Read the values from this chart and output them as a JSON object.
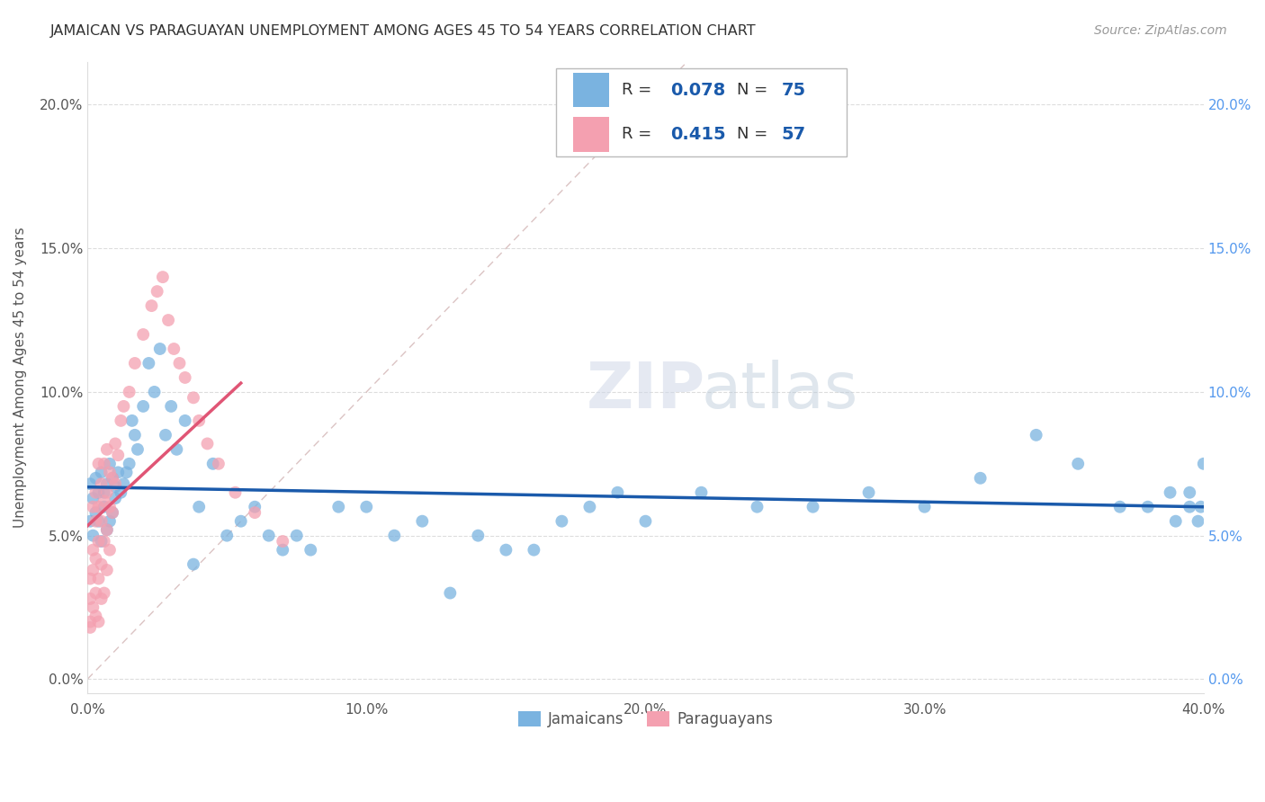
{
  "title": "JAMAICAN VS PARAGUAYAN UNEMPLOYMENT AMONG AGES 45 TO 54 YEARS CORRELATION CHART",
  "source": "Source: ZipAtlas.com",
  "ylabel": "Unemployment Among Ages 45 to 54 years",
  "xlabel_ticks": [
    "0.0%",
    "10.0%",
    "20.0%",
    "30.0%",
    "40.0%"
  ],
  "ylabel_ticks_left": [
    "0.0%",
    "5.0%",
    "10.0%",
    "15.0%",
    "20.0%"
  ],
  "ylabel_ticks_right": [
    "0.0%",
    "5.0%",
    "10.0%",
    "15.0%",
    "20.0%"
  ],
  "xlim": [
    0.0,
    0.4
  ],
  "ylim": [
    -0.005,
    0.215
  ],
  "background_color": "#ffffff",
  "grid_color": "#dddddd",
  "title_color": "#333333",
  "source_color": "#999999",
  "jamaican_color": "#7ab3e0",
  "paraguayan_color": "#f4a0b0",
  "jamaican_line_color": "#1a5aab",
  "paraguayan_line_color": "#e05575",
  "diagonal_line_color": "#f4a0b0",
  "jamaican_R": 0.078,
  "jamaican_N": 75,
  "paraguayan_R": 0.415,
  "paraguayan_N": 57,
  "jamaican_x": [
    0.001,
    0.001,
    0.002,
    0.002,
    0.003,
    0.003,
    0.004,
    0.004,
    0.005,
    0.005,
    0.006,
    0.006,
    0.007,
    0.007,
    0.008,
    0.008,
    0.009,
    0.009,
    0.01,
    0.01,
    0.011,
    0.012,
    0.013,
    0.014,
    0.015,
    0.016,
    0.017,
    0.018,
    0.02,
    0.022,
    0.024,
    0.026,
    0.028,
    0.03,
    0.032,
    0.035,
    0.038,
    0.04,
    0.045,
    0.05,
    0.055,
    0.06,
    0.065,
    0.07,
    0.075,
    0.08,
    0.09,
    0.1,
    0.11,
    0.12,
    0.13,
    0.14,
    0.15,
    0.16,
    0.17,
    0.18,
    0.19,
    0.2,
    0.22,
    0.24,
    0.26,
    0.28,
    0.3,
    0.32,
    0.34,
    0.355,
    0.37,
    0.38,
    0.39,
    0.395,
    0.398,
    0.399,
    0.4,
    0.395,
    0.388
  ],
  "jamaican_y": [
    0.068,
    0.055,
    0.063,
    0.05,
    0.058,
    0.07,
    0.055,
    0.065,
    0.048,
    0.072,
    0.06,
    0.065,
    0.052,
    0.068,
    0.055,
    0.075,
    0.058,
    0.07,
    0.063,
    0.067,
    0.072,
    0.065,
    0.068,
    0.072,
    0.075,
    0.09,
    0.085,
    0.08,
    0.095,
    0.11,
    0.1,
    0.115,
    0.085,
    0.095,
    0.08,
    0.09,
    0.04,
    0.06,
    0.075,
    0.05,
    0.055,
    0.06,
    0.05,
    0.045,
    0.05,
    0.045,
    0.06,
    0.06,
    0.05,
    0.055,
    0.03,
    0.05,
    0.045,
    0.045,
    0.055,
    0.06,
    0.065,
    0.055,
    0.065,
    0.06,
    0.06,
    0.065,
    0.06,
    0.07,
    0.085,
    0.075,
    0.06,
    0.06,
    0.055,
    0.065,
    0.055,
    0.06,
    0.075,
    0.06,
    0.065
  ],
  "paraguayan_x": [
    0.001,
    0.001,
    0.001,
    0.001,
    0.002,
    0.002,
    0.002,
    0.002,
    0.003,
    0.003,
    0.003,
    0.003,
    0.003,
    0.004,
    0.004,
    0.004,
    0.004,
    0.004,
    0.005,
    0.005,
    0.005,
    0.005,
    0.006,
    0.006,
    0.006,
    0.006,
    0.007,
    0.007,
    0.007,
    0.007,
    0.008,
    0.008,
    0.008,
    0.009,
    0.009,
    0.01,
    0.01,
    0.011,
    0.012,
    0.013,
    0.015,
    0.017,
    0.02,
    0.023,
    0.025,
    0.027,
    0.029,
    0.031,
    0.033,
    0.035,
    0.038,
    0.04,
    0.043,
    0.047,
    0.053,
    0.06,
    0.07
  ],
  "paraguayan_y": [
    0.02,
    0.018,
    0.028,
    0.035,
    0.025,
    0.038,
    0.045,
    0.06,
    0.022,
    0.03,
    0.042,
    0.055,
    0.065,
    0.02,
    0.035,
    0.048,
    0.06,
    0.075,
    0.028,
    0.04,
    0.055,
    0.068,
    0.03,
    0.048,
    0.062,
    0.075,
    0.038,
    0.052,
    0.065,
    0.08,
    0.045,
    0.06,
    0.072,
    0.058,
    0.07,
    0.068,
    0.082,
    0.078,
    0.09,
    0.095,
    0.1,
    0.11,
    0.12,
    0.13,
    0.135,
    0.14,
    0.125,
    0.115,
    0.11,
    0.105,
    0.098,
    0.09,
    0.082,
    0.075,
    0.065,
    0.058,
    0.048
  ]
}
